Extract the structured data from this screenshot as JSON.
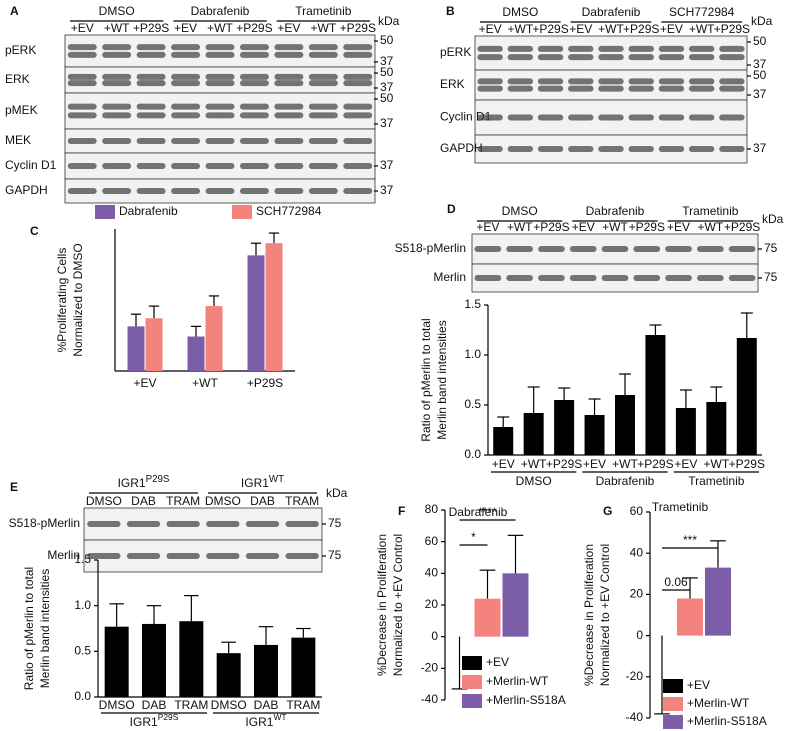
{
  "blots": [
    {
      "panel": "A",
      "unit": "kDa",
      "groups": [
        "DMSO",
        "Dabrafenib",
        "Trametinib"
      ],
      "lanes": [
        "+EV",
        "+WT",
        "+P29S"
      ],
      "rows": [
        {
          "name": "pERK",
          "markers": [
            50,
            37
          ]
        },
        {
          "name": "ERK",
          "markers": [
            50,
            37
          ]
        },
        {
          "name": "pMEK",
          "markers": [
            50,
            37
          ]
        },
        {
          "name": "MEK",
          "markers": []
        },
        {
          "name": "Cyclin D1",
          "markers": [
            37
          ]
        },
        {
          "name": "GAPDH",
          "markers": [
            37
          ]
        }
      ]
    },
    {
      "panel": "B",
      "unit": "kDa",
      "groups": [
        "DMSO",
        "Dabrafenib",
        "SCH772984"
      ],
      "lanes": [
        "+EV",
        "+WT",
        "+P29S"
      ],
      "rows": [
        {
          "name": "pERK",
          "markers": [
            50,
            37
          ]
        },
        {
          "name": "ERK",
          "markers": [
            50,
            37
          ]
        },
        {
          "name": "Cyclin D1",
          "markers": []
        },
        {
          "name": "GAPDH",
          "markers": [
            37
          ]
        }
      ]
    },
    {
      "panel": "D",
      "unit": "kDa",
      "groups": [
        "DMSO",
        "Dabrafenib",
        "Trametinib"
      ],
      "lanes": [
        "+EV",
        "+WT",
        "+P29S"
      ],
      "rows": [
        {
          "name": "S518-pMerlin",
          "markers": [
            75
          ]
        },
        {
          "name": "Merlin",
          "markers": [
            75
          ]
        }
      ]
    },
    {
      "panel": "E",
      "unit": "kDa",
      "groups": [
        {
          "name": "IGR1",
          "sup": "P29S"
        },
        {
          "name": "IGR1",
          "sup": "WT"
        }
      ],
      "lanes": [
        "DMSO",
        "DAB",
        "TRAM"
      ],
      "rows": [
        {
          "name": "S518-pMerlin",
          "markers": [
            75
          ]
        },
        {
          "name": "Merlin",
          "markers": [
            75
          ]
        }
      ]
    }
  ],
  "chart_data": [
    {
      "panel": "C",
      "type": "bar",
      "ylabel": [
        "%Proliferating Cells",
        "Normalized to DMSO"
      ],
      "categories": [
        "+EV",
        "+WT",
        "+P29S"
      ],
      "series": [
        {
          "name": "Dabrafenib",
          "color": "#7b5ea7",
          "values": [
            22,
            17,
            57
          ],
          "errors": [
            6,
            5,
            6
          ]
        },
        {
          "name": "SCH772984",
          "color": "#f4837d",
          "values": [
            26,
            32,
            63
          ],
          "errors": [
            6,
            5,
            5
          ]
        }
      ],
      "ylim": [
        0,
        70
      ],
      "legend": "top"
    },
    {
      "type": "bar",
      "ylabel": [
        "Ratio of pMerlin to total",
        "Merlin band intensities"
      ],
      "categories": [
        "+EV",
        "+WT",
        "+P29S",
        "+EV",
        "+WT",
        "+P29S",
        "+EV",
        "+WT",
        "+P29S"
      ],
      "groups": [
        "DMSO",
        "Dabrafenib",
        "Trametinib"
      ],
      "series": [
        {
          "color": "#000000",
          "values": [
            0.28,
            0.42,
            0.55,
            0.4,
            0.6,
            1.2,
            0.47,
            0.53,
            1.17
          ],
          "errors": [
            0.1,
            0.26,
            0.12,
            0.16,
            0.21,
            0.1,
            0.18,
            0.15,
            0.25
          ]
        }
      ],
      "ylim": [
        0,
        1.5
      ],
      "yticks": [
        {
          "value": 0,
          "label": "0.0"
        },
        0.5,
        {
          "value": 1,
          "label": "1.0"
        },
        1.5
      ]
    },
    {
      "type": "bar",
      "ylabel": [
        "Ratio of pMerlin to total",
        "Merlin band intensities"
      ],
      "categories": [
        "DMSO",
        "DAB",
        "TRAM",
        "DMSO",
        "DAB",
        "TRAM"
      ],
      "groups": [
        {
          "name": "IGR1",
          "sup": "P29S"
        },
        {
          "name": "IGR1",
          "sup": "WT"
        }
      ],
      "series": [
        {
          "color": "#000000",
          "values": [
            0.77,
            0.8,
            0.83,
            0.48,
            0.57,
            0.65
          ],
          "errors": [
            0.25,
            0.2,
            0.28,
            0.12,
            0.2,
            0.1
          ]
        }
      ],
      "ylim": [
        0,
        1.5
      ],
      "yticks": [
        {
          "value": 0,
          "label": "0.0"
        },
        0.5,
        {
          "value": 1,
          "label": "1.0"
        },
        1.5
      ]
    },
    {
      "panel": "F",
      "type": "bar",
      "title": "Dabrafenib",
      "ylabel": [
        "%Decrease in Proliferation",
        "Normalized to +EV Control"
      ],
      "series": [
        {
          "name": "+EV",
          "color": "#000000",
          "values": [
            0
          ],
          "errors": [
            33
          ]
        },
        {
          "name": "+Merlin-WT",
          "color": "#f4837d",
          "values": [
            24
          ],
          "errors": [
            18
          ]
        },
        {
          "name": "+Merlin-S518A",
          "color": "#7b5ea7",
          "values": [
            40
          ],
          "errors": [
            24
          ]
        }
      ],
      "annotations": [
        "*",
        "****"
      ],
      "ylim": [
        -40,
        80
      ],
      "yticks": [
        -40,
        -20,
        0,
        20,
        40,
        60,
        80
      ],
      "legend": "bottom-right"
    },
    {
      "panel": "G",
      "type": "bar",
      "title": "Trametinib",
      "ylabel": [
        "%Decrease in Proliferation",
        "Normalized to +EV Control"
      ],
      "series": [
        {
          "name": "+EV",
          "color": "#000000",
          "values": [
            0
          ],
          "errors": [
            38
          ]
        },
        {
          "name": "+Merlin-WT",
          "color": "#f4837d",
          "values": [
            18
          ],
          "errors": [
            10
          ]
        },
        {
          "name": "+Merlin-S518A",
          "color": "#7b5ea7",
          "values": [
            33
          ],
          "errors": [
            13
          ]
        }
      ],
      "annotations": [
        "0.06",
        "***"
      ],
      "ylim": [
        -40,
        60
      ],
      "yticks": [
        -40,
        -20,
        0,
        20,
        40,
        60
      ],
      "legend": "bottom-right"
    }
  ]
}
